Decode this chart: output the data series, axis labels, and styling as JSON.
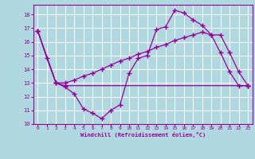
{
  "xlabel": "Windchill (Refroidissement éolien,°C)",
  "background_color": "#b0d8e0",
  "grid_color": "#ffffff",
  "line_color": "#990099",
  "xlim": [
    -0.5,
    23.5
  ],
  "ylim": [
    10,
    18.7
  ],
  "yticks": [
    10,
    11,
    12,
    13,
    14,
    15,
    16,
    17,
    18
  ],
  "xticks": [
    0,
    1,
    2,
    3,
    4,
    5,
    6,
    7,
    8,
    9,
    10,
    11,
    12,
    13,
    14,
    15,
    16,
    17,
    18,
    19,
    20,
    21,
    22,
    23
  ],
  "line1_x": [
    0,
    1,
    2,
    3,
    4,
    5,
    6,
    7,
    8,
    9,
    10,
    11,
    12,
    13,
    14,
    15,
    16,
    17,
    18,
    19,
    20,
    21,
    22,
    23
  ],
  "line1_y": [
    16.8,
    14.8,
    13.0,
    12.7,
    12.2,
    11.1,
    10.8,
    10.4,
    11.0,
    11.4,
    13.7,
    14.8,
    15.0,
    16.9,
    17.1,
    18.3,
    18.1,
    17.6,
    17.2,
    16.5,
    15.2,
    13.8,
    12.8,
    12.8
  ],
  "line2_x": [
    0,
    2,
    3,
    23
  ],
  "line2_y": [
    16.8,
    13.0,
    12.8,
    12.8
  ],
  "line3_x": [
    0,
    2,
    3,
    4,
    5,
    6,
    7,
    8,
    9,
    10,
    11,
    12,
    13,
    14,
    15,
    16,
    17,
    18,
    19,
    20,
    21,
    22,
    23
  ],
  "line3_y": [
    16.8,
    13.0,
    13.0,
    13.2,
    13.5,
    13.7,
    14.0,
    14.3,
    14.6,
    14.8,
    15.1,
    15.3,
    15.6,
    15.8,
    16.1,
    16.3,
    16.5,
    16.7,
    16.5,
    16.5,
    15.2,
    13.8,
    12.8
  ]
}
